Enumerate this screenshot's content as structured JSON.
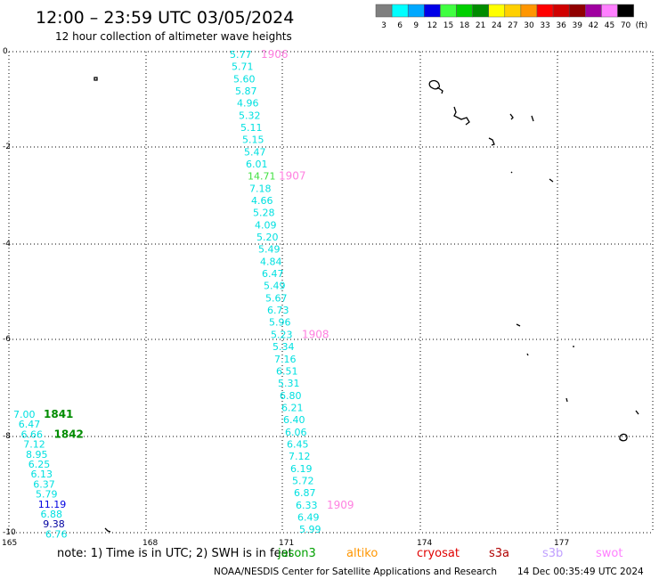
{
  "header": {
    "title": "12:00 – 23:59 UTC 03/05/2024",
    "subtitle": "12 hour collection of altimeter wave heights"
  },
  "legend": {
    "unit": "(ft)",
    "entries": [
      {
        "label": "3",
        "color": "#7f7f7f"
      },
      {
        "label": "6",
        "color": "#00ffff"
      },
      {
        "label": "9",
        "color": "#00a8ff"
      },
      {
        "label": "12",
        "color": "#0000e8"
      },
      {
        "label": "15",
        "color": "#40ff40"
      },
      {
        "label": "18",
        "color": "#00d000"
      },
      {
        "label": "21",
        "color": "#008c00"
      },
      {
        "label": "24",
        "color": "#ffff00"
      },
      {
        "label": "27",
        "color": "#ffd000"
      },
      {
        "label": "30",
        "color": "#ff9600"
      },
      {
        "label": "33",
        "color": "#ff0000"
      },
      {
        "label": "36",
        "color": "#d00000"
      },
      {
        "label": "39",
        "color": "#900000"
      },
      {
        "label": "42",
        "color": "#a000a0"
      },
      {
        "label": "45",
        "color": "#ff80ff"
      },
      {
        "label": "70",
        "color": "#000000"
      }
    ]
  },
  "axes": {
    "x_ticks": [
      "165",
      "168",
      "171",
      "174",
      "177"
    ],
    "y_ticks": [
      "0",
      "-2",
      "-4",
      "-6",
      "-8",
      "-10"
    ]
  },
  "track_east": {
    "heights": [
      "5.77",
      "5.71",
      "5.60",
      "5.87",
      "4.96",
      "5.32",
      "5.11",
      "5.15",
      "5.47",
      "6.01",
      "14.71",
      "7.18",
      "4.66",
      "5.28",
      "4.09",
      "5.20",
      "5.49",
      "4.84",
      "6.47",
      "5.49",
      "5.67",
      "6.73",
      "5.96",
      "5.23",
      "5.34",
      "7.16",
      "6.51",
      "5.31",
      "6.80",
      "6.21",
      "6.40",
      "6.06",
      "6.45",
      "7.12",
      "6.19",
      "5.72",
      "6.87",
      "6.33",
      "6.49",
      "5.99"
    ],
    "colors": [
      "c",
      "c",
      "c",
      "c",
      "c",
      "c",
      "c",
      "c",
      "c",
      "c",
      "g",
      "c",
      "c",
      "c",
      "c",
      "c",
      "c",
      "c",
      "c",
      "c",
      "c",
      "c",
      "c",
      "c",
      "c",
      "c",
      "c",
      "c",
      "c",
      "c",
      "c",
      "c",
      "c",
      "c",
      "c",
      "c",
      "c",
      "c",
      "c",
      "c"
    ],
    "time_labels": [
      {
        "text": "1906",
        "index": 0
      },
      {
        "text": "1907",
        "index": 10
      },
      {
        "text": "1908",
        "index": 23
      },
      {
        "text": "1909",
        "index": 37
      }
    ]
  },
  "track_west": {
    "heights": [
      "7.00",
      "6.47",
      "6.66",
      "7.12",
      "8.95",
      "6.25",
      "6.13",
      "6.37",
      "5.79",
      "11.19",
      "6.88",
      "9.38",
      "6.76"
    ],
    "colors": [
      "c",
      "c",
      "c",
      "c",
      "c",
      "c",
      "c",
      "c",
      "c",
      "b",
      "c",
      "d",
      "c"
    ],
    "time_labels": [
      {
        "text": "1841",
        "index": 0
      },
      {
        "text": "1842",
        "index": 2
      }
    ]
  },
  "footer": {
    "note": "note:  1) Time is in UTC; 2) SWH is in feet",
    "satellites": [
      {
        "name": "jason3",
        "color": "#00a000"
      },
      {
        "name": "altiko",
        "color": "#ff9600"
      },
      {
        "name": "cryosat",
        "color": "#e00000"
      },
      {
        "name": "s3a",
        "color": "#b00000"
      },
      {
        "name": "s3b",
        "color": "#c0a0ff"
      },
      {
        "name": "swot",
        "color": "#ff80ff"
      }
    ],
    "credit": "NOAA/NESDIS Center for Satellite Applications and Research",
    "timestamp": "14 Dec 00:35:49 UTC 2024"
  },
  "colors": {
    "cyan": "#00e0e0",
    "green": "#40e040",
    "blue": "#0000e0",
    "darkblue": "#0000a0",
    "time_pink": "#ff80e0",
    "time_green": "#008c00"
  }
}
